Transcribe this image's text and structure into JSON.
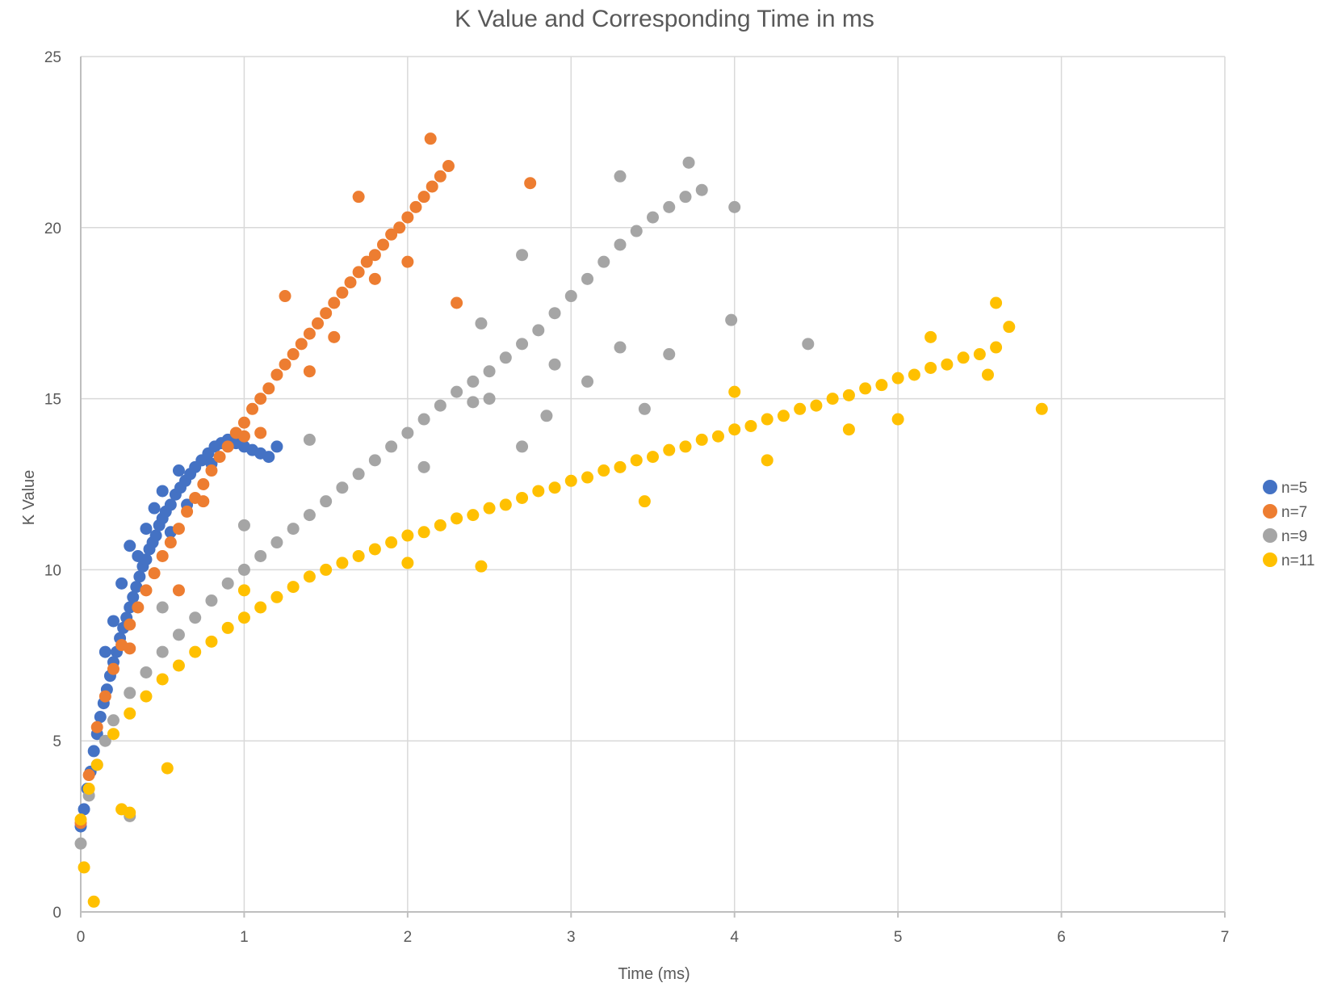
{
  "chart_data": {
    "type": "scatter",
    "title": "K Value and Corresponding Time in ms",
    "xlabel": "Time (ms)",
    "ylabel": "K Value",
    "xlim": [
      0,
      7
    ],
    "ylim": [
      0,
      25
    ],
    "x_ticks": [
      "0",
      "1",
      "2",
      "3",
      "4",
      "5",
      "6",
      "7"
    ],
    "y_ticks": [
      "0",
      "5",
      "10",
      "15",
      "20",
      "25"
    ],
    "grid": true,
    "legend_position": "right",
    "series": [
      {
        "name": "n=5",
        "color": "#4472C4",
        "points": [
          [
            0.0,
            2.5
          ],
          [
            0.02,
            3.0
          ],
          [
            0.04,
            3.6
          ],
          [
            0.06,
            4.1
          ],
          [
            0.08,
            4.7
          ],
          [
            0.1,
            5.2
          ],
          [
            0.12,
            5.7
          ],
          [
            0.14,
            6.1
          ],
          [
            0.16,
            6.5
          ],
          [
            0.18,
            6.9
          ],
          [
            0.2,
            7.3
          ],
          [
            0.22,
            7.6
          ],
          [
            0.24,
            8.0
          ],
          [
            0.26,
            8.3
          ],
          [
            0.28,
            8.6
          ],
          [
            0.3,
            8.9
          ],
          [
            0.32,
            9.2
          ],
          [
            0.34,
            9.5
          ],
          [
            0.36,
            9.8
          ],
          [
            0.38,
            10.1
          ],
          [
            0.4,
            10.3
          ],
          [
            0.42,
            10.6
          ],
          [
            0.44,
            10.8
          ],
          [
            0.46,
            11.0
          ],
          [
            0.48,
            11.3
          ],
          [
            0.5,
            11.5
          ],
          [
            0.52,
            11.7
          ],
          [
            0.55,
            11.9
          ],
          [
            0.58,
            12.2
          ],
          [
            0.61,
            12.4
          ],
          [
            0.64,
            12.6
          ],
          [
            0.67,
            12.8
          ],
          [
            0.7,
            13.0
          ],
          [
            0.74,
            13.2
          ],
          [
            0.78,
            13.4
          ],
          [
            0.82,
            13.6
          ],
          [
            0.86,
            13.7
          ],
          [
            0.9,
            13.8
          ],
          [
            0.95,
            13.7
          ],
          [
            1.0,
            13.6
          ],
          [
            1.05,
            13.5
          ],
          [
            1.1,
            13.4
          ],
          [
            1.15,
            13.3
          ],
          [
            1.2,
            13.6
          ],
          [
            0.3,
            10.7
          ],
          [
            0.35,
            10.4
          ],
          [
            0.45,
            11.8
          ],
          [
            0.25,
            9.6
          ],
          [
            0.2,
            8.5
          ],
          [
            0.15,
            7.6
          ],
          [
            0.5,
            12.3
          ],
          [
            0.6,
            12.9
          ],
          [
            0.8,
            13.1
          ],
          [
            0.4,
            11.2
          ],
          [
            0.55,
            11.1
          ],
          [
            0.65,
            11.9
          ]
        ]
      },
      {
        "name": "n=7",
        "color": "#ED7D31",
        "points": [
          [
            0.0,
            2.6
          ],
          [
            0.05,
            4.0
          ],
          [
            0.1,
            5.4
          ],
          [
            0.15,
            6.3
          ],
          [
            0.2,
            7.1
          ],
          [
            0.25,
            7.8
          ],
          [
            0.3,
            8.4
          ],
          [
            0.35,
            8.9
          ],
          [
            0.4,
            9.4
          ],
          [
            0.45,
            9.9
          ],
          [
            0.5,
            10.4
          ],
          [
            0.55,
            10.8
          ],
          [
            0.6,
            11.2
          ],
          [
            0.65,
            11.7
          ],
          [
            0.7,
            12.1
          ],
          [
            0.75,
            12.5
          ],
          [
            0.8,
            12.9
          ],
          [
            0.85,
            13.3
          ],
          [
            0.9,
            13.6
          ],
          [
            0.95,
            14.0
          ],
          [
            1.0,
            14.3
          ],
          [
            1.05,
            14.7
          ],
          [
            1.1,
            15.0
          ],
          [
            1.15,
            15.3
          ],
          [
            1.2,
            15.7
          ],
          [
            1.25,
            16.0
          ],
          [
            1.3,
            16.3
          ],
          [
            1.35,
            16.6
          ],
          [
            1.4,
            16.9
          ],
          [
            1.45,
            17.2
          ],
          [
            1.5,
            17.5
          ],
          [
            1.55,
            17.8
          ],
          [
            1.6,
            18.1
          ],
          [
            1.65,
            18.4
          ],
          [
            1.7,
            18.7
          ],
          [
            1.75,
            19.0
          ],
          [
            1.8,
            19.2
          ],
          [
            1.85,
            19.5
          ],
          [
            1.9,
            19.8
          ],
          [
            1.95,
            20.0
          ],
          [
            2.0,
            20.3
          ],
          [
            2.05,
            20.6
          ],
          [
            2.1,
            20.9
          ],
          [
            2.15,
            21.2
          ],
          [
            2.2,
            21.5
          ],
          [
            2.25,
            21.8
          ],
          [
            2.14,
            22.6
          ],
          [
            1.7,
            20.9
          ],
          [
            1.25,
            18.0
          ],
          [
            2.75,
            21.3
          ],
          [
            2.3,
            17.8
          ],
          [
            1.0,
            13.9
          ],
          [
            0.6,
            9.4
          ],
          [
            0.3,
            7.7
          ],
          [
            1.1,
            14.0
          ],
          [
            0.75,
            12.0
          ],
          [
            1.4,
            15.8
          ],
          [
            1.8,
            18.5
          ],
          [
            2.0,
            19.0
          ],
          [
            1.55,
            16.8
          ]
        ]
      },
      {
        "name": "n=9",
        "color": "#A5A5A5",
        "points": [
          [
            0.0,
            2.0
          ],
          [
            0.05,
            3.4
          ],
          [
            0.1,
            4.3
          ],
          [
            0.15,
            5.0
          ],
          [
            0.2,
            5.6
          ],
          [
            0.3,
            6.4
          ],
          [
            0.4,
            7.0
          ],
          [
            0.5,
            7.6
          ],
          [
            0.6,
            8.1
          ],
          [
            0.7,
            8.6
          ],
          [
            0.8,
            9.1
          ],
          [
            0.9,
            9.6
          ],
          [
            1.0,
            10.0
          ],
          [
            1.1,
            10.4
          ],
          [
            1.2,
            10.8
          ],
          [
            1.3,
            11.2
          ],
          [
            1.4,
            11.6
          ],
          [
            1.5,
            12.0
          ],
          [
            1.6,
            12.4
          ],
          [
            1.7,
            12.8
          ],
          [
            1.8,
            13.2
          ],
          [
            1.9,
            13.6
          ],
          [
            2.0,
            14.0
          ],
          [
            2.1,
            14.4
          ],
          [
            2.2,
            14.8
          ],
          [
            2.3,
            15.2
          ],
          [
            2.4,
            15.5
          ],
          [
            2.5,
            15.8
          ],
          [
            2.6,
            16.2
          ],
          [
            2.7,
            16.6
          ],
          [
            2.8,
            17.0
          ],
          [
            2.9,
            17.5
          ],
          [
            3.0,
            18.0
          ],
          [
            3.1,
            18.5
          ],
          [
            3.2,
            19.0
          ],
          [
            3.3,
            19.5
          ],
          [
            3.4,
            19.9
          ],
          [
            3.5,
            20.3
          ],
          [
            3.6,
            20.6
          ],
          [
            3.7,
            20.9
          ],
          [
            3.8,
            21.1
          ],
          [
            3.72,
            21.9
          ],
          [
            3.3,
            21.5
          ],
          [
            4.0,
            20.6
          ],
          [
            3.98,
            17.3
          ],
          [
            4.45,
            16.6
          ],
          [
            3.6,
            16.3
          ],
          [
            3.3,
            16.5
          ],
          [
            2.7,
            19.2
          ],
          [
            2.7,
            13.6
          ],
          [
            2.85,
            14.5
          ],
          [
            3.1,
            15.5
          ],
          [
            2.45,
            17.2
          ],
          [
            2.4,
            14.9
          ],
          [
            2.1,
            13.0
          ],
          [
            1.4,
            13.8
          ],
          [
            1.0,
            11.3
          ],
          [
            0.5,
            8.9
          ],
          [
            0.3,
            2.8
          ],
          [
            3.45,
            14.7
          ],
          [
            2.5,
            15.0
          ],
          [
            2.9,
            16.0
          ]
        ]
      },
      {
        "name": "n=11",
        "color": "#FFC000",
        "points": [
          [
            0.02,
            1.3
          ],
          [
            0.08,
            0.3
          ],
          [
            0.0,
            2.7
          ],
          [
            0.05,
            3.6
          ],
          [
            0.1,
            4.3
          ],
          [
            0.2,
            5.2
          ],
          [
            0.3,
            5.8
          ],
          [
            0.4,
            6.3
          ],
          [
            0.5,
            6.8
          ],
          [
            0.6,
            7.2
          ],
          [
            0.7,
            7.6
          ],
          [
            0.8,
            7.9
          ],
          [
            0.9,
            8.3
          ],
          [
            1.0,
            8.6
          ],
          [
            1.1,
            8.9
          ],
          [
            1.2,
            9.2
          ],
          [
            1.3,
            9.5
          ],
          [
            1.4,
            9.8
          ],
          [
            1.5,
            10.0
          ],
          [
            1.6,
            10.2
          ],
          [
            1.7,
            10.4
          ],
          [
            1.8,
            10.6
          ],
          [
            1.9,
            10.8
          ],
          [
            2.0,
            11.0
          ],
          [
            2.1,
            11.1
          ],
          [
            2.2,
            11.3
          ],
          [
            2.3,
            11.5
          ],
          [
            2.4,
            11.6
          ],
          [
            2.5,
            11.8
          ],
          [
            2.6,
            11.9
          ],
          [
            2.7,
            12.1
          ],
          [
            2.8,
            12.3
          ],
          [
            2.9,
            12.4
          ],
          [
            3.0,
            12.6
          ],
          [
            3.1,
            12.7
          ],
          [
            3.2,
            12.9
          ],
          [
            3.3,
            13.0
          ],
          [
            3.4,
            13.2
          ],
          [
            3.5,
            13.3
          ],
          [
            3.6,
            13.5
          ],
          [
            3.7,
            13.6
          ],
          [
            3.8,
            13.8
          ],
          [
            3.9,
            13.9
          ],
          [
            4.0,
            14.1
          ],
          [
            4.1,
            14.2
          ],
          [
            4.2,
            14.4
          ],
          [
            4.3,
            14.5
          ],
          [
            4.4,
            14.7
          ],
          [
            4.5,
            14.8
          ],
          [
            4.6,
            15.0
          ],
          [
            4.7,
            15.1
          ],
          [
            4.8,
            15.3
          ],
          [
            4.9,
            15.4
          ],
          [
            5.0,
            15.6
          ],
          [
            5.1,
            15.7
          ],
          [
            5.2,
            15.9
          ],
          [
            5.3,
            16.0
          ],
          [
            5.4,
            16.2
          ],
          [
            5.5,
            16.3
          ],
          [
            5.6,
            16.5
          ],
          [
            5.6,
            17.8
          ],
          [
            5.68,
            17.1
          ],
          [
            5.88,
            14.7
          ],
          [
            0.53,
            4.2
          ],
          [
            0.25,
            3.0
          ],
          [
            0.3,
            2.9
          ],
          [
            1.0,
            9.4
          ],
          [
            2.45,
            10.1
          ],
          [
            3.45,
            12.0
          ],
          [
            4.2,
            13.2
          ],
          [
            4.7,
            14.1
          ],
          [
            5.0,
            14.4
          ],
          [
            5.55,
            15.7
          ],
          [
            5.2,
            16.8
          ],
          [
            4.0,
            15.2
          ],
          [
            2.0,
            10.2
          ]
        ]
      }
    ]
  }
}
